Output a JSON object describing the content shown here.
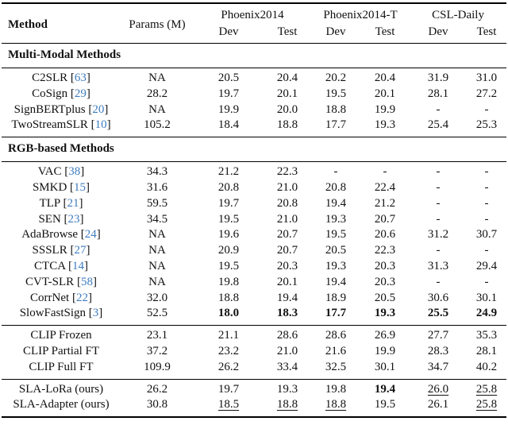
{
  "colors": {
    "text": "#111111",
    "citation": "#3e7cbf",
    "rule": "#000000",
    "background": "#ffffff"
  },
  "table": {
    "header": {
      "method": "Method",
      "params": "Params (M)",
      "groups": [
        {
          "label": "Phoenix2014",
          "sub": [
            "Dev",
            "Test"
          ]
        },
        {
          "label": "Phoenix2014-T",
          "sub": [
            "Dev",
            "Test"
          ]
        },
        {
          "label": "CSL-Daily",
          "sub": [
            "Dev",
            "Test"
          ]
        }
      ]
    },
    "blocks": [
      {
        "type": "section",
        "title": "Multi-Modal Methods"
      },
      {
        "type": "rows",
        "rows": [
          {
            "method": "C2SLR",
            "cite": "63",
            "params": "NA",
            "values": [
              "20.5",
              "20.4",
              "20.2",
              "20.4",
              "31.9",
              "31.0"
            ],
            "bold": [],
            "underline": []
          },
          {
            "method": "CoSign",
            "cite": "29",
            "params": "28.2",
            "values": [
              "19.7",
              "20.1",
              "19.5",
              "20.1",
              "28.1",
              "27.2"
            ],
            "bold": [],
            "underline": []
          },
          {
            "method": "SignBERTplus",
            "cite": "20",
            "params": "NA",
            "values": [
              "19.9",
              "20.0",
              "18.8",
              "19.9",
              "-",
              "-"
            ],
            "bold": [],
            "underline": []
          },
          {
            "method": "TwoStreamSLR",
            "cite": "10",
            "params": "105.2",
            "values": [
              "18.4",
              "18.8",
              "17.7",
              "19.3",
              "25.4",
              "25.3"
            ],
            "bold": [],
            "underline": []
          }
        ]
      },
      {
        "type": "section",
        "title": "RGB-based Methods"
      },
      {
        "type": "rows",
        "rows": [
          {
            "method": "VAC",
            "cite": "38",
            "params": "34.3",
            "values": [
              "21.2",
              "22.3",
              "-",
              "-",
              "-",
              "-"
            ],
            "bold": [],
            "underline": []
          },
          {
            "method": "SMKD",
            "cite": "15",
            "params": "31.6",
            "values": [
              "20.8",
              "21.0",
              "20.8",
              "22.4",
              "-",
              "-"
            ],
            "bold": [],
            "underline": []
          },
          {
            "method": "TLP",
            "cite": "21",
            "params": "59.5",
            "values": [
              "19.7",
              "20.8",
              "19.4",
              "21.2",
              "-",
              "-"
            ],
            "bold": [],
            "underline": []
          },
          {
            "method": "SEN",
            "cite": "23",
            "params": "34.5",
            "values": [
              "19.5",
              "21.0",
              "19.3",
              "20.7",
              "-",
              "-"
            ],
            "bold": [],
            "underline": []
          },
          {
            "method": "AdaBrowse",
            "cite": "24",
            "params": "NA",
            "values": [
              "19.6",
              "20.7",
              "19.5",
              "20.6",
              "31.2",
              "30.7"
            ],
            "bold": [],
            "underline": []
          },
          {
            "method": "SSSLR",
            "cite": "27",
            "params": "NA",
            "values": [
              "20.9",
              "20.7",
              "20.5",
              "22.3",
              "-",
              "-"
            ],
            "bold": [],
            "underline": []
          },
          {
            "method": "CTCA",
            "cite": "14",
            "params": "NA",
            "values": [
              "19.5",
              "20.3",
              "19.3",
              "20.3",
              "31.3",
              "29.4"
            ],
            "bold": [],
            "underline": []
          },
          {
            "method": "CVT-SLR",
            "cite": "58",
            "params": "NA",
            "values": [
              "19.8",
              "20.1",
              "19.4",
              "20.3",
              "-",
              "-"
            ],
            "bold": [],
            "underline": []
          },
          {
            "method": "CorrNet",
            "cite": "22",
            "params": "32.0",
            "values": [
              "18.8",
              "19.4",
              "18.9",
              "20.5",
              "30.6",
              "30.1"
            ],
            "bold": [],
            "underline": []
          },
          {
            "method": "SlowFastSign",
            "cite": "3",
            "params": "52.5",
            "values": [
              "18.0",
              "18.3",
              "17.7",
              "19.3",
              "25.5",
              "24.9"
            ],
            "bold": [
              0,
              1,
              2,
              3,
              4,
              5
            ],
            "underline": []
          }
        ]
      },
      {
        "type": "rows",
        "rows": [
          {
            "method": "CLIP Frozen",
            "cite": null,
            "params": "23.1",
            "values": [
              "21.1",
              "28.6",
              "28.6",
              "26.9",
              "27.7",
              "35.3"
            ],
            "bold": [],
            "underline": []
          },
          {
            "method": "CLIP Partial FT",
            "cite": null,
            "params": "37.2",
            "values": [
              "23.2",
              "21.0",
              "21.6",
              "19.9",
              "28.3",
              "28.1"
            ],
            "bold": [],
            "underline": []
          },
          {
            "method": "CLIP Full FT",
            "cite": null,
            "params": "109.9",
            "values": [
              "26.2",
              "33.4",
              "32.5",
              "30.1",
              "34.7",
              "40.2"
            ],
            "bold": [],
            "underline": []
          }
        ]
      },
      {
        "type": "rows",
        "rows": [
          {
            "method": "SLA-LoRa (ours)",
            "cite": null,
            "params": "26.2",
            "values": [
              "19.7",
              "19.3",
              "19.8",
              "19.4",
              "26.0",
              "25.8"
            ],
            "bold": [
              3
            ],
            "underline": [
              4,
              5
            ]
          },
          {
            "method": "SLA-Adapter (ours)",
            "cite": null,
            "params": "30.8",
            "values": [
              "18.5",
              "18.8",
              "18.8",
              "19.5",
              "26.1",
              "25.8"
            ],
            "bold": [],
            "underline": [
              0,
              1,
              2,
              5
            ]
          }
        ]
      }
    ]
  }
}
